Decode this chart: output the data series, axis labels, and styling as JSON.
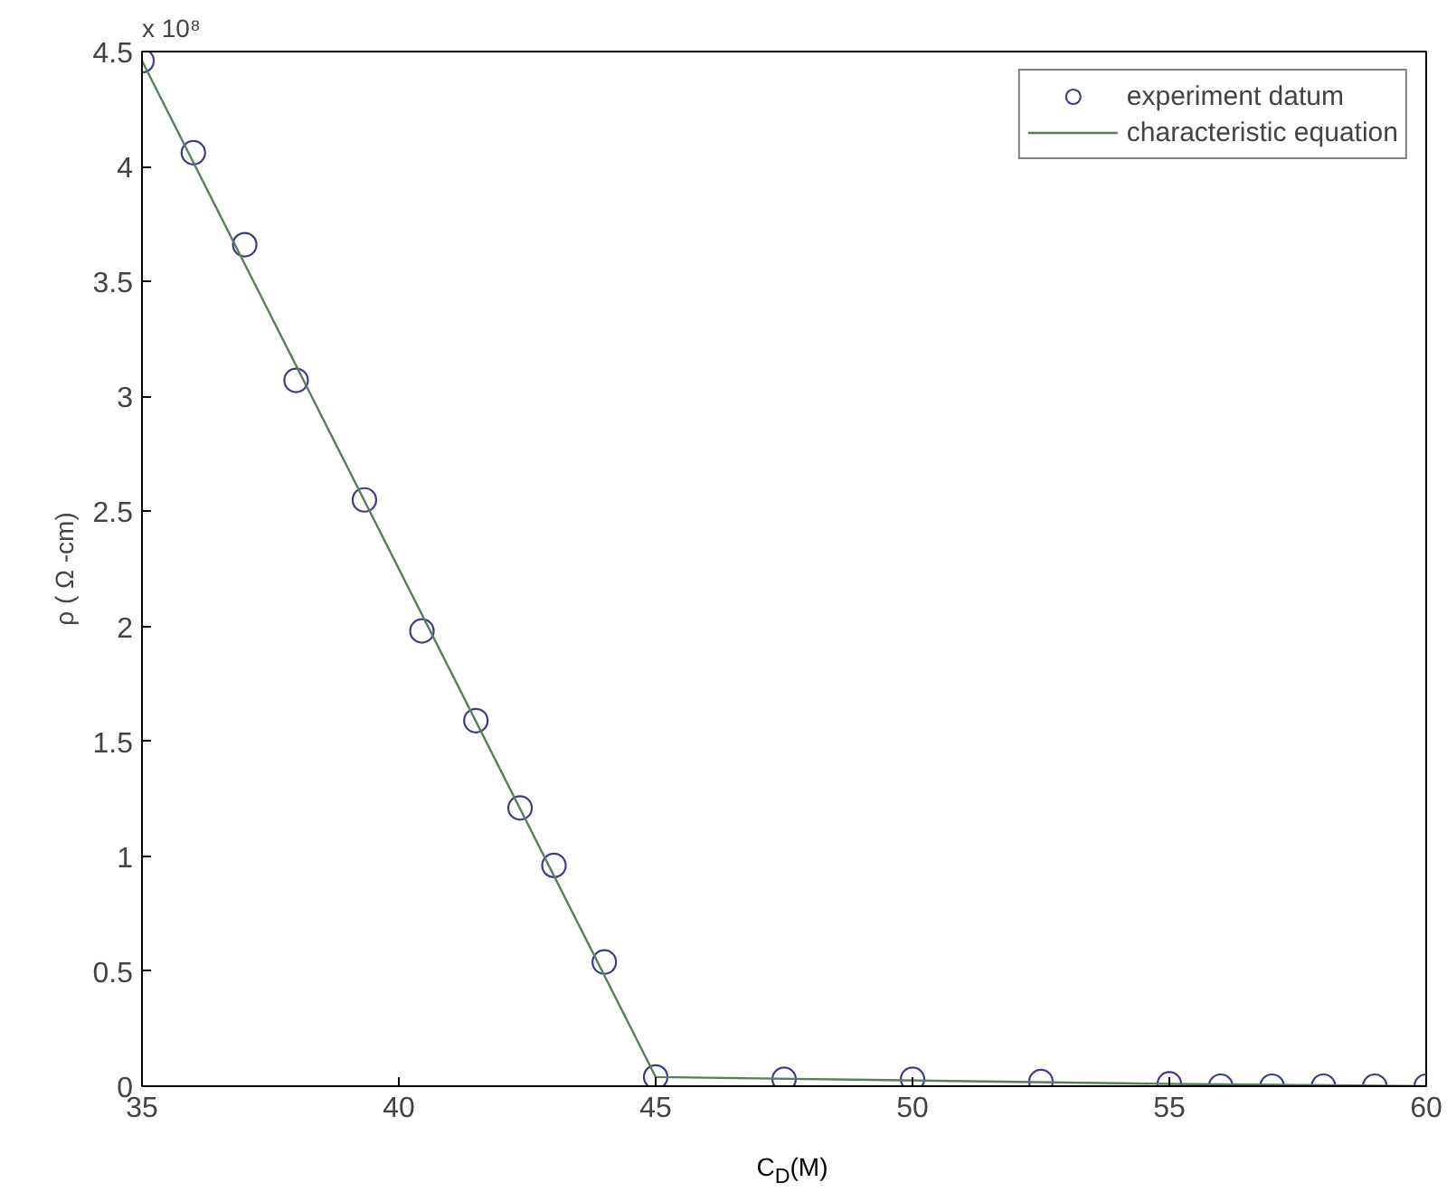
{
  "chart_data": {
    "type": "scatter",
    "xlabel": "C$_{D}$(M)",
    "ylabel": "ρ ( Ω -cm)",
    "annotations": [
      "x 10⁸"
    ],
    "xlim": [
      35,
      60
    ],
    "xticks": [
      35,
      40,
      45,
      50,
      55,
      60
    ],
    "ylim": [
      0,
      4.5
    ],
    "yticks": [
      0,
      0.5,
      1,
      1.5,
      2,
      2.5,
      3,
      3.5,
      4,
      4.5
    ],
    "grid": false,
    "legend": "top right",
    "series": [
      {
        "name": "experiment datum",
        "marker": "circle",
        "color": "#3c3c8c",
        "x": [
          35,
          36,
          37,
          38,
          39.33,
          40.45,
          41.5,
          42.36,
          43.02,
          44,
          45,
          47.5,
          50,
          52.5,
          55,
          56,
          57,
          58,
          59,
          60
        ],
        "values": [
          4.46,
          4.06,
          3.66,
          3.07,
          2.55,
          1.98,
          1.59,
          1.21,
          0.96,
          0.54,
          0.04,
          0.03,
          0.03,
          0.02,
          0.01,
          0,
          0,
          0,
          0,
          0
        ]
      },
      {
        "name": "characteristic equation",
        "type": "line",
        "marker": "none",
        "line_style": "solid",
        "color": "#5a7d5a",
        "x": [
          35,
          45,
          55,
          60
        ],
        "values": [
          4.46,
          0.04,
          0.01,
          0
        ]
      }
    ]
  }
}
